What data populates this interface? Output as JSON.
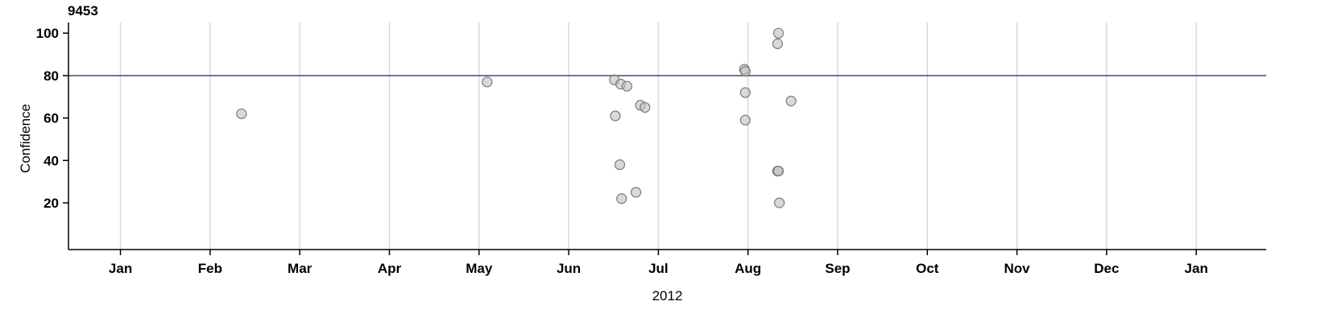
{
  "page": {
    "title": "9453"
  },
  "chart_data": {
    "type": "scatter",
    "title": "9453",
    "xlabel": "2012",
    "ylabel": "Confidence",
    "legend": "none",
    "grid": "vertical-only",
    "x_tick_labels": [
      "Jan",
      "Feb",
      "Mar",
      "Apr",
      "May",
      "Jun",
      "Jul",
      "Aug",
      "Sep",
      "Oct",
      "Nov",
      "Dec",
      "Jan"
    ],
    "x_tick_months": [
      0,
      1,
      2,
      3,
      4,
      5,
      6,
      7,
      8,
      9,
      10,
      11,
      12
    ],
    "y_ticks": [
      20,
      40,
      60,
      80,
      100
    ],
    "x_domain": [
      -0.58,
      12.78
    ],
    "y_domain": [
      -2,
      105
    ],
    "reference_line": {
      "y": 80,
      "color": "#32327e"
    },
    "points": [
      {
        "x": 1.35,
        "y": 62
      },
      {
        "x": 4.09,
        "y": 77
      },
      {
        "x": 5.51,
        "y": 78
      },
      {
        "x": 5.58,
        "y": 76
      },
      {
        "x": 5.65,
        "y": 75
      },
      {
        "x": 5.52,
        "y": 61
      },
      {
        "x": 5.8,
        "y": 66
      },
      {
        "x": 5.85,
        "y": 65
      },
      {
        "x": 5.57,
        "y": 38
      },
      {
        "x": 5.75,
        "y": 25
      },
      {
        "x": 5.59,
        "y": 22
      },
      {
        "x": 6.96,
        "y": 83
      },
      {
        "x": 6.97,
        "y": 82
      },
      {
        "x": 6.97,
        "y": 72
      },
      {
        "x": 6.97,
        "y": 59
      },
      {
        "x": 7.34,
        "y": 100
      },
      {
        "x": 7.33,
        "y": 95
      },
      {
        "x": 7.33,
        "y": 35
      },
      {
        "x": 7.34,
        "y": 35
      },
      {
        "x": 7.35,
        "y": 20
      },
      {
        "x": 7.48,
        "y": 68
      }
    ],
    "style": {
      "point_fill": "#bfbfbf",
      "point_fill_opacity": 0.6,
      "point_stroke": "#7a7a7a",
      "point_radius": 6,
      "grid_color": "#d9d9d9",
      "axis_color": "#000000",
      "background": "#ffffff"
    }
  }
}
